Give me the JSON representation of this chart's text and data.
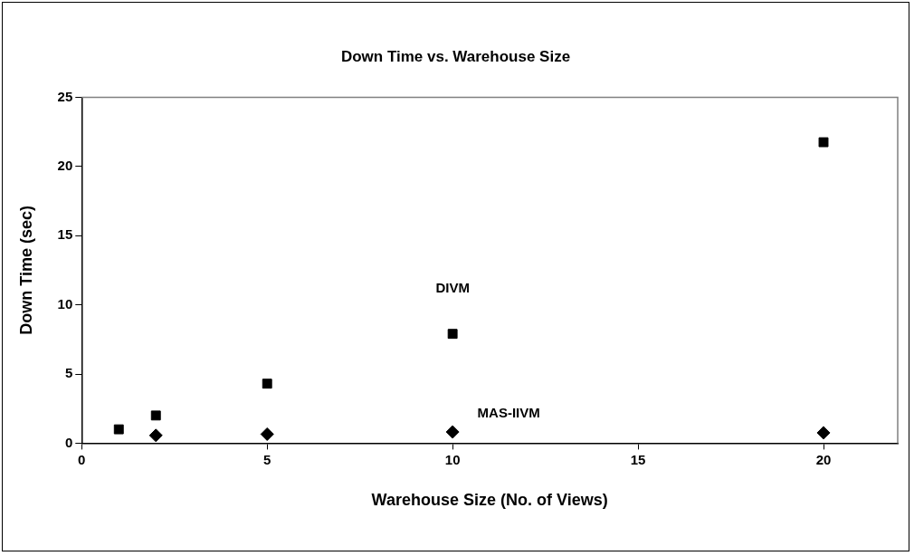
{
  "chart_data": {
    "type": "scatter",
    "title": "Down Time vs. Warehouse Size",
    "xlabel": "Warehouse Size (No. of Views)",
    "ylabel": "Down Time (sec)",
    "series": [
      {
        "name": "DIVM",
        "color": "#000000",
        "marker": "square",
        "x": [
          1,
          2,
          5,
          10,
          20
        ],
        "values": [
          1.0,
          2.0,
          4.3,
          7.9,
          21.75
        ]
      },
      {
        "name": "MAS-IIVM",
        "color": "#000000",
        "marker": "diamond",
        "x": [
          2,
          5,
          10,
          20
        ],
        "values": [
          0.56,
          0.65,
          0.81,
          0.75
        ]
      }
    ],
    "xlim": [
      0,
      22
    ],
    "xticks": [
      0,
      5,
      10,
      15,
      20
    ],
    "ylim": [
      0,
      25
    ],
    "yticks": [
      0,
      5,
      10,
      15,
      20,
      25
    ],
    "grid": false,
    "legend": false
  }
}
